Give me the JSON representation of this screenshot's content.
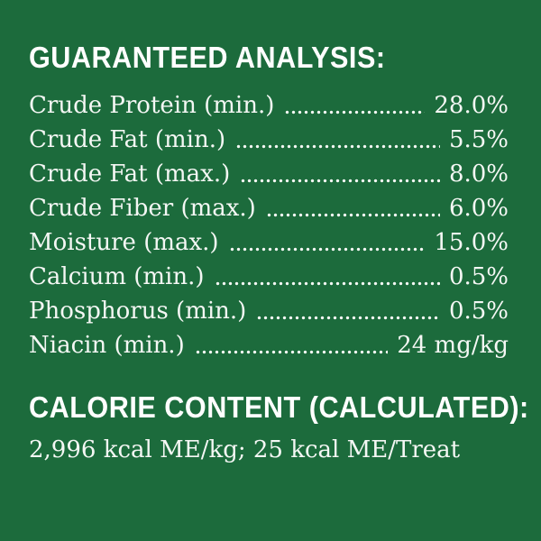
{
  "page": {
    "background_color": "#1c6b3c",
    "text_color": "#ffffff"
  },
  "guaranteed_analysis": {
    "title": "GUARANTEED ANALYSIS:",
    "rows": [
      {
        "label": "Crude Protein (min.)",
        "value": "28.0%"
      },
      {
        "label": "Crude Fat (min.)",
        "value": "5.5%"
      },
      {
        "label": "Crude Fat (max.)",
        "value": "8.0%"
      },
      {
        "label": "Crude Fiber (max.)",
        "value": "6.0%"
      },
      {
        "label": "Moisture (max.)",
        "value": "15.0%"
      },
      {
        "label": "Calcium (min.)",
        "value": "0.5%"
      },
      {
        "label": "Phosphorus (min.)",
        "value": "0.5%"
      },
      {
        "label": "Niacin (min.)",
        "value": "24 mg/kg"
      }
    ]
  },
  "calorie_content": {
    "title": "CALORIE CONTENT (CALCULATED):",
    "value": "2,996 kcal ME/kg; 25 kcal ME/Treat"
  }
}
